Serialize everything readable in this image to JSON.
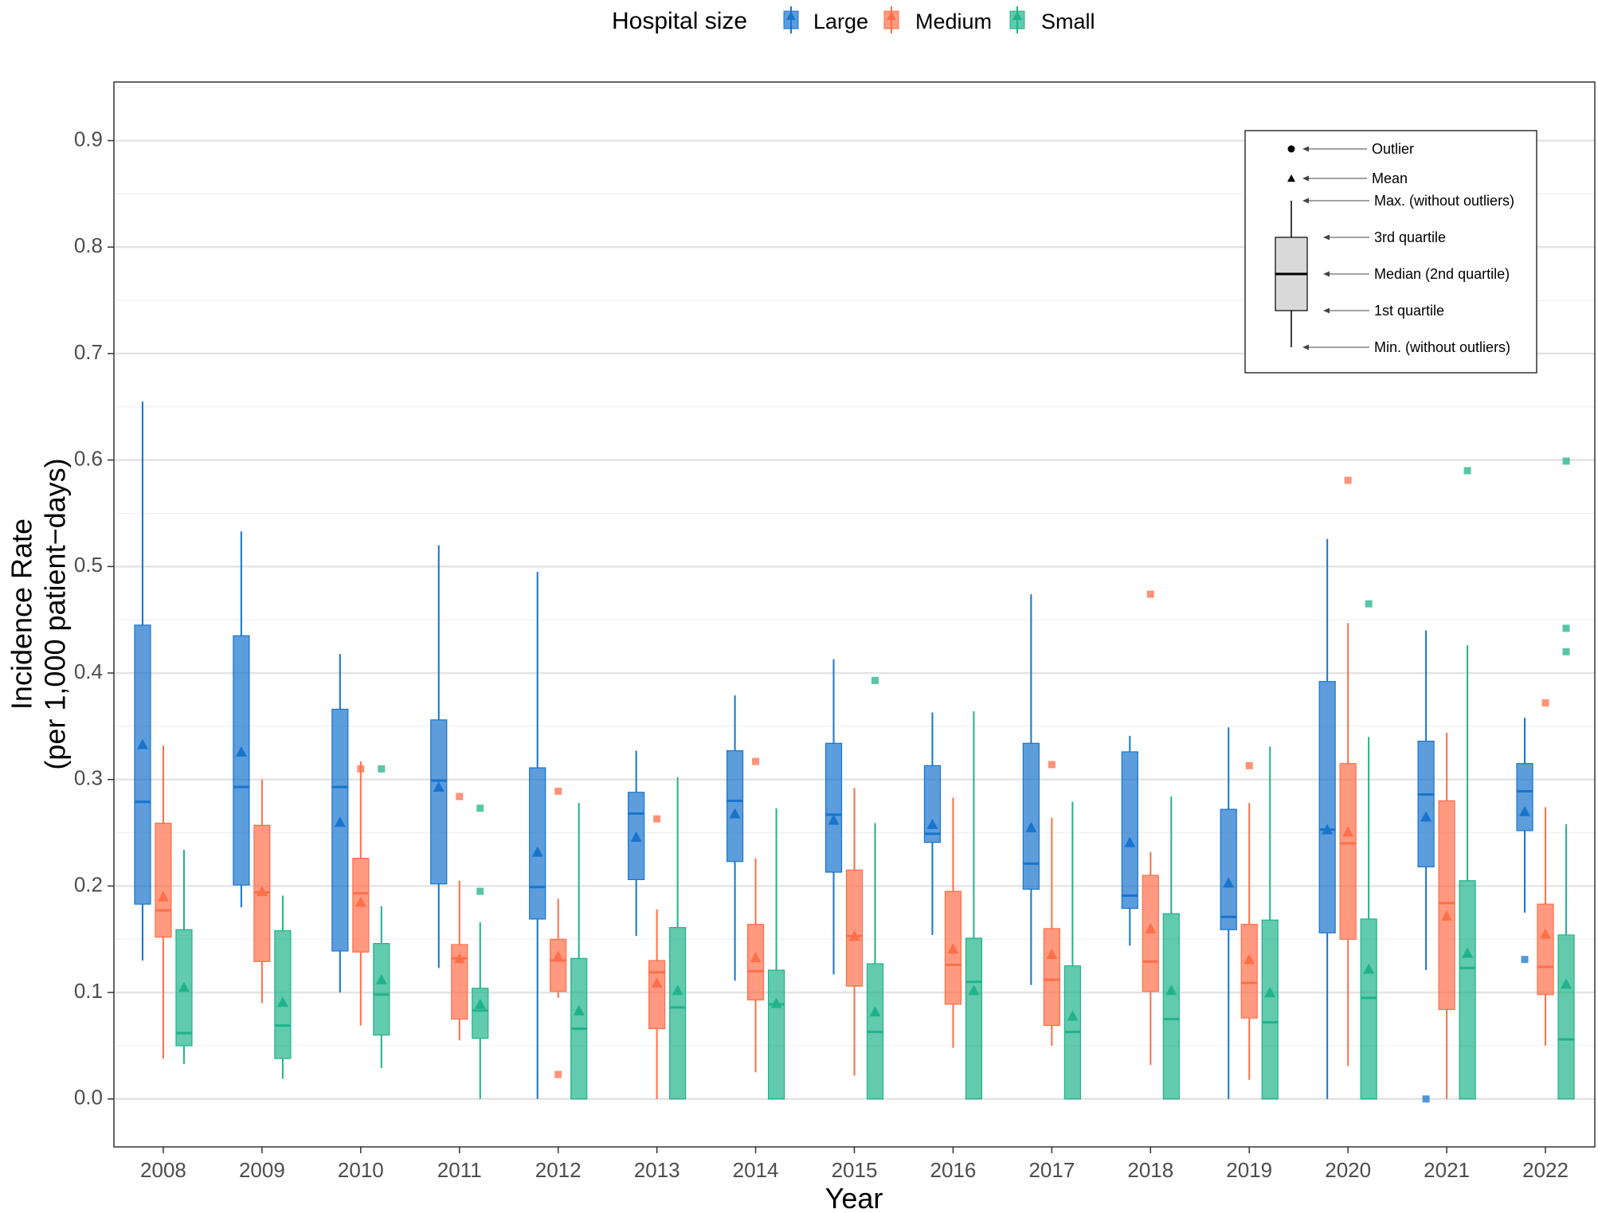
{
  "chart_data": {
    "type": "box",
    "title": "",
    "xlabel": "Year",
    "ylabel_line1": "Incidence Rate",
    "ylabel_line2": "(per 1,000 patient−days)",
    "ylim": [
      -0.045,
      0.955
    ],
    "yticks": [
      "0.0",
      "0.1",
      "0.2",
      "0.3",
      "0.4",
      "0.5",
      "0.6",
      "0.7",
      "0.8",
      "0.9"
    ],
    "categories": [
      "2008",
      "2009",
      "2010",
      "2011",
      "2012",
      "2013",
      "2014",
      "2015",
      "2016",
      "2017",
      "2018",
      "2019",
      "2020",
      "2021",
      "2022"
    ],
    "grid": true,
    "legend": {
      "position": "top",
      "title": "Hospital size",
      "items": [
        "Large",
        "Medium",
        "Small"
      ]
    },
    "colors": {
      "Large": "#1874cd",
      "Medium": "#ff6f4a",
      "Small": "#1fb38a"
    },
    "series": [
      {
        "name": "Large",
        "boxes": [
          {
            "min": 0.13,
            "q1": 0.183,
            "median": 0.279,
            "q3": 0.445,
            "max": 0.655,
            "mean": 0.333,
            "outliers": []
          },
          {
            "min": 0.18,
            "q1": 0.201,
            "median": 0.293,
            "q3": 0.435,
            "max": 0.533,
            "mean": 0.326,
            "outliers": []
          },
          {
            "min": 0.1,
            "q1": 0.139,
            "median": 0.293,
            "q3": 0.366,
            "max": 0.418,
            "mean": 0.26,
            "outliers": []
          },
          {
            "min": 0.123,
            "q1": 0.202,
            "median": 0.299,
            "q3": 0.356,
            "max": 0.52,
            "mean": 0.293,
            "outliers": []
          },
          {
            "min": 0.0,
            "q1": 0.169,
            "median": 0.199,
            "q3": 0.311,
            "max": 0.495,
            "mean": 0.232,
            "outliers": []
          },
          {
            "min": 0.153,
            "q1": 0.206,
            "median": 0.268,
            "q3": 0.288,
            "max": 0.327,
            "mean": 0.246,
            "outliers": []
          },
          {
            "min": 0.111,
            "q1": 0.223,
            "median": 0.28,
            "q3": 0.327,
            "max": 0.379,
            "mean": 0.268,
            "outliers": []
          },
          {
            "min": 0.117,
            "q1": 0.213,
            "median": 0.267,
            "q3": 0.334,
            "max": 0.413,
            "mean": 0.262,
            "outliers": []
          },
          {
            "min": 0.154,
            "q1": 0.241,
            "median": 0.249,
            "q3": 0.313,
            "max": 0.363,
            "mean": 0.258,
            "outliers": []
          },
          {
            "min": 0.107,
            "q1": 0.197,
            "median": 0.221,
            "q3": 0.334,
            "max": 0.474,
            "mean": 0.255,
            "outliers": []
          },
          {
            "min": 0.144,
            "q1": 0.179,
            "median": 0.191,
            "q3": 0.326,
            "max": 0.341,
            "mean": 0.241,
            "outliers": []
          },
          {
            "min": 0.0,
            "q1": 0.159,
            "median": 0.171,
            "q3": 0.272,
            "max": 0.349,
            "mean": 0.203,
            "outliers": []
          },
          {
            "min": 0.0,
            "q1": 0.156,
            "median": 0.253,
            "q3": 0.392,
            "max": 0.526,
            "mean": 0.253,
            "outliers": []
          },
          {
            "min": 0.121,
            "q1": 0.218,
            "median": 0.286,
            "q3": 0.336,
            "max": 0.44,
            "mean": 0.265,
            "outliers": [
              0.0
            ]
          },
          {
            "min": 0.175,
            "q1": 0.252,
            "median": 0.289,
            "q3": 0.315,
            "max": 0.358,
            "mean": 0.27,
            "outliers": [
              0.131
            ]
          }
        ]
      },
      {
        "name": "Medium",
        "boxes": [
          {
            "min": 0.038,
            "q1": 0.152,
            "median": 0.177,
            "q3": 0.259,
            "max": 0.332,
            "mean": 0.19,
            "outliers": []
          },
          {
            "min": 0.09,
            "q1": 0.129,
            "median": 0.194,
            "q3": 0.257,
            "max": 0.3,
            "mean": 0.195,
            "outliers": []
          },
          {
            "min": 0.069,
            "q1": 0.138,
            "median": 0.193,
            "q3": 0.226,
            "max": 0.317,
            "mean": 0.185,
            "outliers": [
              0.31
            ]
          },
          {
            "min": 0.055,
            "q1": 0.075,
            "median": 0.132,
            "q3": 0.145,
            "max": 0.205,
            "mean": 0.132,
            "outliers": [
              0.284
            ]
          },
          {
            "min": 0.095,
            "q1": 0.101,
            "median": 0.13,
            "q3": 0.15,
            "max": 0.188,
            "mean": 0.134,
            "outliers": [
              0.289,
              0.023
            ]
          },
          {
            "min": 0.0,
            "q1": 0.066,
            "median": 0.119,
            "q3": 0.13,
            "max": 0.178,
            "mean": 0.109,
            "outliers": [
              0.263
            ]
          },
          {
            "min": 0.025,
            "q1": 0.093,
            "median": 0.12,
            "q3": 0.164,
            "max": 0.226,
            "mean": 0.133,
            "outliers": [
              0.317
            ]
          },
          {
            "min": 0.022,
            "q1": 0.106,
            "median": 0.153,
            "q3": 0.215,
            "max": 0.292,
            "mean": 0.153,
            "outliers": []
          },
          {
            "min": 0.048,
            "q1": 0.089,
            "median": 0.126,
            "q3": 0.195,
            "max": 0.283,
            "mean": 0.141,
            "outliers": []
          },
          {
            "min": 0.05,
            "q1": 0.069,
            "median": 0.112,
            "q3": 0.16,
            "max": 0.264,
            "mean": 0.136,
            "outliers": [
              0.314
            ]
          },
          {
            "min": 0.032,
            "q1": 0.101,
            "median": 0.129,
            "q3": 0.21,
            "max": 0.232,
            "mean": 0.16,
            "outliers": [
              0.474
            ]
          },
          {
            "min": 0.018,
            "q1": 0.076,
            "median": 0.109,
            "q3": 0.164,
            "max": 0.278,
            "mean": 0.131,
            "outliers": [
              0.313
            ]
          },
          {
            "min": 0.031,
            "q1": 0.15,
            "median": 0.24,
            "q3": 0.315,
            "max": 0.447,
            "mean": 0.251,
            "outliers": [
              0.581
            ]
          },
          {
            "min": 0.0,
            "q1": 0.084,
            "median": 0.184,
            "q3": 0.28,
            "max": 0.344,
            "mean": 0.172,
            "outliers": []
          },
          {
            "min": 0.05,
            "q1": 0.098,
            "median": 0.124,
            "q3": 0.183,
            "max": 0.274,
            "mean": 0.155,
            "outliers": [
              0.372
            ]
          }
        ]
      },
      {
        "name": "Small",
        "boxes": [
          {
            "min": 0.033,
            "q1": 0.05,
            "median": 0.062,
            "q3": 0.159,
            "max": 0.234,
            "mean": 0.105,
            "outliers": []
          },
          {
            "min": 0.019,
            "q1": 0.038,
            "median": 0.069,
            "q3": 0.158,
            "max": 0.191,
            "mean": 0.091,
            "outliers": []
          },
          {
            "min": 0.029,
            "q1": 0.06,
            "median": 0.098,
            "q3": 0.146,
            "max": 0.181,
            "mean": 0.112,
            "outliers": [
              0.31
            ]
          },
          {
            "min": 0.0,
            "q1": 0.057,
            "median": 0.083,
            "q3": 0.104,
            "max": 0.166,
            "mean": 0.089,
            "outliers": [
              0.273,
              0.195
            ]
          },
          {
            "min": 0.0,
            "q1": 0.0,
            "median": 0.066,
            "q3": 0.132,
            "max": 0.278,
            "mean": 0.083,
            "outliers": []
          },
          {
            "min": 0.0,
            "q1": 0.0,
            "median": 0.086,
            "q3": 0.161,
            "max": 0.302,
            "mean": 0.102,
            "outliers": []
          },
          {
            "min": 0.0,
            "q1": 0.0,
            "median": 0.089,
            "q3": 0.121,
            "max": 0.273,
            "mean": 0.09,
            "outliers": []
          },
          {
            "min": 0.0,
            "q1": 0.0,
            "median": 0.063,
            "q3": 0.127,
            "max": 0.259,
            "mean": 0.082,
            "outliers": [
              0.393
            ]
          },
          {
            "min": 0.0,
            "q1": 0.0,
            "median": 0.11,
            "q3": 0.151,
            "max": 0.364,
            "mean": 0.102,
            "outliers": []
          },
          {
            "min": 0.0,
            "q1": 0.0,
            "median": 0.063,
            "q3": 0.125,
            "max": 0.279,
            "mean": 0.078,
            "outliers": []
          },
          {
            "min": 0.0,
            "q1": 0.0,
            "median": 0.075,
            "q3": 0.174,
            "max": 0.284,
            "mean": 0.102,
            "outliers": []
          },
          {
            "min": 0.0,
            "q1": 0.0,
            "median": 0.072,
            "q3": 0.168,
            "max": 0.331,
            "mean": 0.1,
            "outliers": []
          },
          {
            "min": 0.0,
            "q1": 0.0,
            "median": 0.095,
            "q3": 0.169,
            "max": 0.34,
            "mean": 0.122,
            "outliers": [
              0.465
            ]
          },
          {
            "min": 0.0,
            "q1": 0.0,
            "median": 0.123,
            "q3": 0.205,
            "max": 0.426,
            "mean": 0.137,
            "outliers": [
              0.59
            ]
          },
          {
            "min": 0.0,
            "q1": 0.0,
            "median": 0.056,
            "q3": 0.154,
            "max": 0.258,
            "mean": 0.108,
            "outliers": [
              0.599,
              0.442,
              0.42
            ]
          }
        ]
      }
    ],
    "key_legend": {
      "labels": {
        "outlier": "Outlier",
        "mean": "Mean",
        "max": "Max. (without outliers)",
        "q3": "3rd quartile",
        "median": "Median (2nd quartile)",
        "q1": "1st quartile",
        "min": "Min. (without outliers)"
      },
      "box_color": "#d9d9d9"
    }
  }
}
